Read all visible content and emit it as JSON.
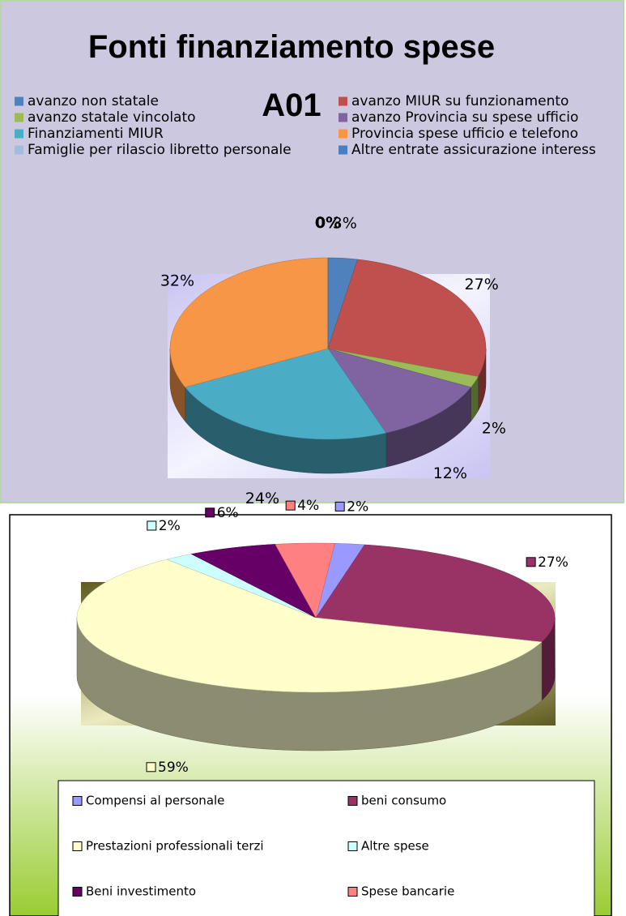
{
  "chart_data": [
    {
      "type": "pie3d",
      "title": "Fonti finanziamento spese A01",
      "categories": [
        "avanzo non statale",
        "avanzo MIUR su funzionamento",
        "avanzo statale vincolato",
        "avanzo Provincia su spese ufficio",
        "Finanziamenti MIUR",
        "Provincia spese ufficio e telefono",
        "Famiglie per rilascio libretto personale",
        "Altre entrate assicurazione interess"
      ],
      "values": [
        3,
        27,
        2,
        12,
        24,
        32,
        0,
        0
      ],
      "value_labels": [
        "3%",
        "27%",
        "2%",
        "12%",
        "24%",
        "32%",
        "0%",
        "0%"
      ],
      "colors": [
        "#4f81bd",
        "#c0504d",
        "#9bbb59",
        "#8064a2",
        "#4bacc6",
        "#f79646",
        "#a5bbdb",
        "#4a7ec0"
      ]
    },
    {
      "type": "pie3d",
      "categories": [
        "Compensi al personale",
        "beni consumo",
        "Prestazioni professionali terzi",
        "Altre spese",
        "Beni investimento",
        "Spese bancarie"
      ],
      "values": [
        2,
        27,
        59,
        2,
        6,
        4
      ],
      "value_labels": [
        "2%",
        "27%",
        "59%",
        "2%",
        "6%",
        "4%"
      ],
      "colors": [
        "#9999ff",
        "#993366",
        "#ffffcc",
        "#ccffff",
        "#660066",
        "#ff8080"
      ]
    }
  ]
}
